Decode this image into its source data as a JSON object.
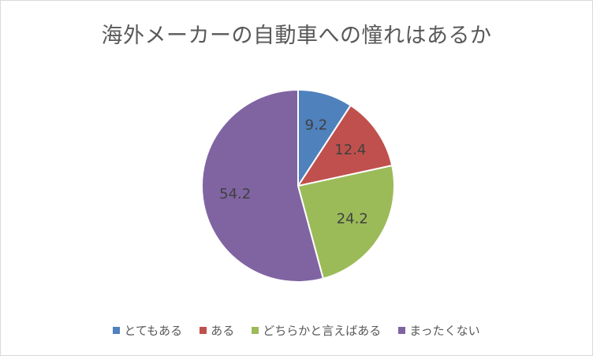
{
  "chart_data": {
    "type": "pie",
    "title": "海外メーカーの自動車への憧れはあるか",
    "categories": [
      "とてもある",
      "ある",
      "どちらかと言えばある",
      "まったくない"
    ],
    "values": [
      9.2,
      12.4,
      24.2,
      54.2
    ],
    "value_labels": [
      "9.2",
      "12.4",
      "24.2",
      "54.2"
    ],
    "colors": [
      "#4f81bd",
      "#c0504d",
      "#9bbb59",
      "#8064a2"
    ],
    "legend_position": "bottom",
    "start_angle": "12 o'clock, clockwise"
  }
}
